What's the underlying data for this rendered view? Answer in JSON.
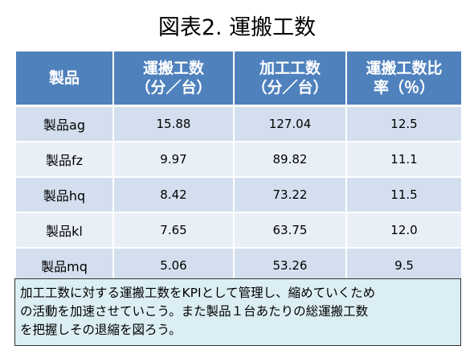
{
  "title": "図表2. 運搬工数",
  "table": {
    "header": [
      [
        "製品"
      ],
      [
        "運搬工数",
        "（分／台）"
      ],
      [
        "加工工数",
        "（分／台）"
      ],
      [
        "運搬工数比",
        "率（％）"
      ]
    ],
    "rows": [
      [
        "製品ag",
        "15.88",
        "127.04",
        "12.5"
      ],
      [
        "製品fz",
        "9.97",
        "89.82",
        "11.1"
      ],
      [
        "製品hq",
        "8.42",
        "73.22",
        "11.5"
      ],
      [
        "製品kl",
        "7.65",
        "63.75",
        "12.0"
      ],
      [
        "製品mq",
        "5.06",
        "53.26",
        "9.5"
      ]
    ]
  },
  "note": {
    "lines": [
      "加工工数に対する運搬工数をKPIとして管理し、縮めていくため",
      "の活動を加速させていこう。また製品１台あたりの総運搬工数",
      "を把握しその退縮を図ろう。"
    ]
  }
}
